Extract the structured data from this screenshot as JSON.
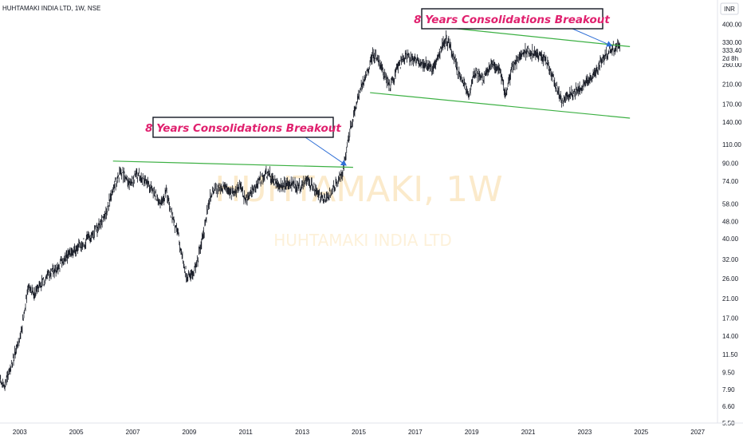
{
  "symbol_title": "HUHTAMAKI INDIA LTD, 1W, NSE",
  "currency": "INR",
  "price_label": "333.40",
  "countdown_label": "2d 8h",
  "watermark": {
    "ticker": "HUHTAMAKI, 1W",
    "name": "HUHTAMAKI INDIA LTD"
  },
  "colors": {
    "up": "#131722",
    "trendline": "#3cb043",
    "arrow": "#2f6fd6",
    "annotation": "#e0206e",
    "last_price": "#131722"
  },
  "chart_data": {
    "type": "candlestick",
    "y_scale": "log",
    "ylim": [
      5.5,
      520
    ],
    "xlim": [
      2002.3,
      2027.7
    ],
    "x_ticks": [
      "2003",
      "2005",
      "2007",
      "2009",
      "2011",
      "2013",
      "2015",
      "2017",
      "2019",
      "2021",
      "2023",
      "2025",
      "2027"
    ],
    "y_ticks": [
      "5.50",
      "6.60",
      "7.90",
      "9.50",
      "11.50",
      "14.00",
      "17.00",
      "21.00",
      "26.00",
      "32.00",
      "40.00",
      "48.00",
      "58.00",
      "74.00",
      "90.00",
      "110.00",
      "140.00",
      "170.00",
      "210.00",
      "260.00",
      "330.00",
      "400.00"
    ],
    "price_path": [
      [
        2002.3,
        8.8
      ],
      [
        2002.45,
        8.0
      ],
      [
        2002.6,
        9.2
      ],
      [
        2002.8,
        11.2
      ],
      [
        2003.0,
        13.5
      ],
      [
        2003.15,
        18.0
      ],
      [
        2003.3,
        24.0
      ],
      [
        2003.5,
        22.0
      ],
      [
        2003.7,
        24.5
      ],
      [
        2004.0,
        27.0
      ],
      [
        2004.3,
        29.0
      ],
      [
        2004.6,
        32.0
      ],
      [
        2005.0,
        36.0
      ],
      [
        2005.3,
        38.0
      ],
      [
        2005.6,
        42.0
      ],
      [
        2005.9,
        48.0
      ],
      [
        2006.1,
        55.0
      ],
      [
        2006.35,
        70.0
      ],
      [
        2006.55,
        82.0
      ],
      [
        2006.7,
        78.0
      ],
      [
        2006.9,
        72.0
      ],
      [
        2007.15,
        80.0
      ],
      [
        2007.4,
        76.0
      ],
      [
        2007.6,
        70.0
      ],
      [
        2007.8,
        64.0
      ],
      [
        2008.0,
        58.0
      ],
      [
        2008.2,
        66.0
      ],
      [
        2008.4,
        50.0
      ],
      [
        2008.6,
        42.0
      ],
      [
        2008.8,
        30.0
      ],
      [
        2008.95,
        26.0
      ],
      [
        2009.1,
        27.0
      ],
      [
        2009.3,
        32.0
      ],
      [
        2009.5,
        42.0
      ],
      [
        2009.7,
        60.0
      ],
      [
        2009.9,
        68.0
      ],
      [
        2010.2,
        70.0
      ],
      [
        2010.5,
        66.0
      ],
      [
        2010.8,
        70.0
      ],
      [
        2011.0,
        60.0
      ],
      [
        2011.3,
        68.0
      ],
      [
        2011.6,
        78.0
      ],
      [
        2011.8,
        82.0
      ],
      [
        2012.0,
        74.0
      ],
      [
        2012.3,
        70.0
      ],
      [
        2012.6,
        72.0
      ],
      [
        2012.9,
        70.0
      ],
      [
        2013.2,
        74.0
      ],
      [
        2013.5,
        66.0
      ],
      [
        2013.75,
        60.0
      ],
      [
        2014.0,
        66.0
      ],
      [
        2014.2,
        72.0
      ],
      [
        2014.45,
        84.0
      ],
      [
        2014.7,
        130.0
      ],
      [
        2015.0,
        190.0
      ],
      [
        2015.3,
        240.0
      ],
      [
        2015.5,
        290.0
      ],
      [
        2015.7,
        275.0
      ],
      [
        2015.9,
        230.0
      ],
      [
        2016.1,
        205.0
      ],
      [
        2016.4,
        260.0
      ],
      [
        2016.7,
        285.0
      ],
      [
        2017.0,
        270.0
      ],
      [
        2017.3,
        260.0
      ],
      [
        2017.6,
        250.0
      ],
      [
        2017.9,
        300.0
      ],
      [
        2018.1,
        345.0
      ],
      [
        2018.3,
        300.0
      ],
      [
        2018.5,
        240.0
      ],
      [
        2018.7,
        215.0
      ],
      [
        2018.9,
        185.0
      ],
      [
        2019.1,
        240.0
      ],
      [
        2019.4,
        220.0
      ],
      [
        2019.7,
        260.0
      ],
      [
        2020.0,
        245.0
      ],
      [
        2020.2,
        185.0
      ],
      [
        2020.4,
        245.0
      ],
      [
        2020.7,
        290.0
      ],
      [
        2021.0,
        300.0
      ],
      [
        2021.3,
        295.0
      ],
      [
        2021.6,
        280.0
      ],
      [
        2021.9,
        220.0
      ],
      [
        2022.2,
        175.0
      ],
      [
        2022.4,
        185.0
      ],
      [
        2022.7,
        195.0
      ],
      [
        2023.0,
        210.0
      ],
      [
        2023.3,
        230.0
      ],
      [
        2023.6,
        270.0
      ],
      [
        2023.9,
        300.0
      ],
      [
        2024.1,
        315.0
      ],
      [
        2024.25,
        333.4
      ]
    ],
    "trendlines": [
      {
        "from": [
          2006.3,
          92
        ],
        "to": [
          2014.8,
          86
        ]
      },
      {
        "from": [
          2017.4,
          395
        ],
        "to": [
          2024.6,
          315
        ]
      },
      {
        "from": [
          2015.4,
          192
        ],
        "to": [
          2024.6,
          146
        ]
      }
    ],
    "annotations": [
      {
        "text": "8 Years Consolidations Breakout",
        "arrow_to": [
          2014.55,
          88
        ]
      },
      {
        "text": "8 Years Consolidations Breakout",
        "arrow_to": [
          2023.95,
          318
        ]
      }
    ]
  }
}
